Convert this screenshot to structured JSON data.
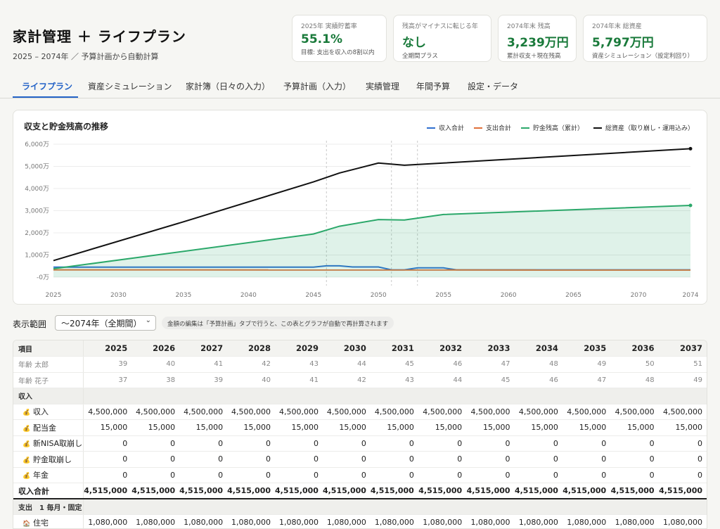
{
  "header": {
    "title": "家計管理 ＋ ライフプラン",
    "subtitle": "2025 – 2074年 ／ 予算計画から自動計算"
  },
  "kpis": [
    {
      "label": "2025年 実績貯蓄率",
      "value": "55.1%",
      "note": "目標: 支出を収入の8割以内"
    },
    {
      "label": "残高がマイナスに転じる年",
      "value": "なし",
      "note": "全期間プラス"
    },
    {
      "label": "2074年末 残高",
      "value": "3,239万円",
      "note": "累計収支＋現在残高"
    },
    {
      "label": "2074年末 総資産",
      "value": "5,797万円",
      "note": "資産シミュレーション（設定利回り）"
    }
  ],
  "tabs": [
    "ライフプラン",
    "資産シミュレーション",
    "家計簿（日々の入力）",
    "予算計画（入力）",
    "実績管理",
    "年間予算",
    "設定・データ"
  ],
  "active_tab": 0,
  "controls": {
    "range_label": "表示範囲",
    "range_value": "〜2074年（全期間）",
    "hint": "金額の編集は「予算計画」タブで行うと、この表とグラフが自動で再計算されます"
  },
  "colors": {
    "income": "#2f6fcf",
    "expense": "#e0703a",
    "savings": "#2ba86a",
    "total": "#111111",
    "accent": "#2463c7",
    "kpi_value": "#1a7a3b"
  },
  "chart_data": {
    "type": "line",
    "title": "収支と貯金残高の推移",
    "xlim": [
      2025,
      2074
    ],
    "ylim": [
      0,
      6000
    ],
    "y_ticks": [
      "-0万",
      "1,000万",
      "2,000万",
      "3,000万",
      "4,000万",
      "5,000万",
      "6,000万"
    ],
    "y_tick_values": [
      0,
      1000,
      2000,
      3000,
      4000,
      5000,
      6000
    ],
    "x_ticks": [
      2025,
      2030,
      2035,
      2040,
      2045,
      2050,
      2055,
      2060,
      2065,
      2070,
      2074
    ],
    "event_years": [
      2046,
      2051,
      2053
    ],
    "grid": true,
    "legend_position": "top-right",
    "series": [
      {
        "name": "収入合計",
        "color_key": "income",
        "x": [
          2025,
          2045,
          2046,
          2047,
          2048,
          2050,
          2051,
          2052,
          2053,
          2055,
          2056,
          2074
        ],
        "y": [
          450,
          450,
          510,
          510,
          460,
          460,
          330,
          330,
          420,
          420,
          330,
          330
        ]
      },
      {
        "name": "支出合計",
        "color_key": "expense",
        "x": [
          2025,
          2074
        ],
        "y": [
          330,
          320
        ]
      },
      {
        "name": "貯金残高（累計）",
        "color_key": "savings",
        "fill": true,
        "x": [
          2025,
          2045,
          2047,
          2050,
          2052,
          2055,
          2074
        ],
        "y": [
          380,
          1950,
          2300,
          2600,
          2580,
          2830,
          3239
        ]
      },
      {
        "name": "総資産（取り崩し・運用込み）",
        "color_key": "total",
        "x": [
          2025,
          2035,
          2045,
          2047,
          2050,
          2052,
          2055,
          2074
        ],
        "y": [
          750,
          2500,
          4300,
          4700,
          5150,
          5050,
          5150,
          5797
        ]
      }
    ]
  },
  "table": {
    "item_header": "項目",
    "years": [
      "2025",
      "2026",
      "2027",
      "2028",
      "2029",
      "2030",
      "2031",
      "2032",
      "2033",
      "2034",
      "2035",
      "2036",
      "2037"
    ],
    "rows": [
      {
        "kind": "age",
        "label": "年齢 太郎",
        "values": [
          "39",
          "40",
          "41",
          "42",
          "43",
          "44",
          "45",
          "46",
          "47",
          "48",
          "49",
          "50",
          "51"
        ]
      },
      {
        "kind": "age",
        "label": "年齢 花子",
        "values": [
          "37",
          "38",
          "39",
          "40",
          "41",
          "42",
          "43",
          "44",
          "45",
          "46",
          "47",
          "48",
          "49"
        ]
      },
      {
        "kind": "section",
        "label": "収入"
      },
      {
        "kind": "data",
        "icon": "💰",
        "label": "収入",
        "values": [
          "4,500,000",
          "4,500,000",
          "4,500,000",
          "4,500,000",
          "4,500,000",
          "4,500,000",
          "4,500,000",
          "4,500,000",
          "4,500,000",
          "4,500,000",
          "4,500,000",
          "4,500,000",
          "4,500,000"
        ]
      },
      {
        "kind": "data",
        "icon": "💰",
        "label": "配当金",
        "values": [
          "15,000",
          "15,000",
          "15,000",
          "15,000",
          "15,000",
          "15,000",
          "15,000",
          "15,000",
          "15,000",
          "15,000",
          "15,000",
          "15,000",
          "15,000"
        ]
      },
      {
        "kind": "data",
        "icon": "💰",
        "label": "新NISA取崩し",
        "values": [
          "0",
          "0",
          "0",
          "0",
          "0",
          "0",
          "0",
          "0",
          "0",
          "0",
          "0",
          "0",
          "0"
        ]
      },
      {
        "kind": "data",
        "icon": "💰",
        "label": "貯金取崩し",
        "values": [
          "0",
          "0",
          "0",
          "0",
          "0",
          "0",
          "0",
          "0",
          "0",
          "0",
          "0",
          "0",
          "0"
        ]
      },
      {
        "kind": "data",
        "icon": "💰",
        "label": "年金",
        "values": [
          "0",
          "0",
          "0",
          "0",
          "0",
          "0",
          "0",
          "0",
          "0",
          "0",
          "0",
          "0",
          "0"
        ]
      },
      {
        "kind": "total",
        "label": "収入合計",
        "values": [
          "4,515,000",
          "4,515,000",
          "4,515,000",
          "4,515,000",
          "4,515,000",
          "4,515,000",
          "4,515,000",
          "4,515,000",
          "4,515,000",
          "4,515,000",
          "4,515,000",
          "4,515,000",
          "4,515,000"
        ]
      },
      {
        "kind": "section",
        "label": "支出　1 毎月・固定"
      },
      {
        "kind": "data",
        "icon": "🏠",
        "label": "住宅",
        "values": [
          "1,080,000",
          "1,080,000",
          "1,080,000",
          "1,080,000",
          "1,080,000",
          "1,080,000",
          "1,080,000",
          "1,080,000",
          "1,080,000",
          "1,080,000",
          "1,080,000",
          "1,080,000",
          "1,080,000"
        ]
      }
    ]
  }
}
